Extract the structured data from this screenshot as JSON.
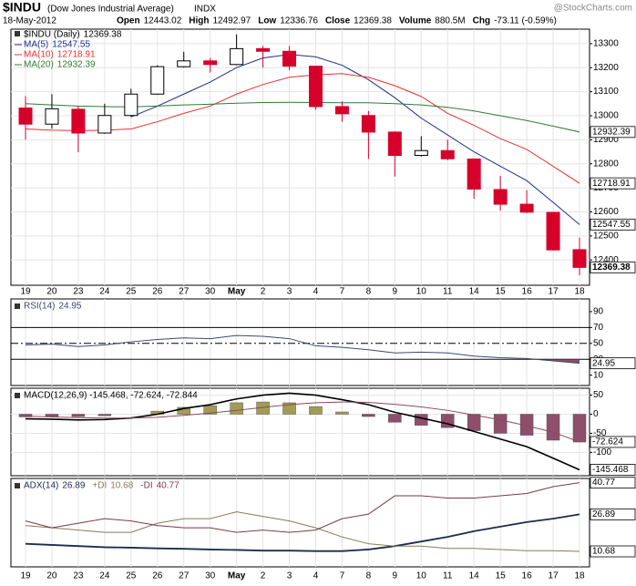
{
  "header": {
    "title": "$INDU",
    "subtitle": "(Dow Jones Industrial Average)",
    "exchange": "INDX",
    "watermark": "@StockCharts.com",
    "date": "18-May-2012",
    "stats": [
      {
        "label": "Open",
        "value": 12443.02
      },
      {
        "label": "High",
        "value": 12492.97
      },
      {
        "label": "Low",
        "value": 12336.76
      },
      {
        "label": "Close",
        "value": 12369.38
      },
      {
        "label": "Volume",
        "value": "880.5M"
      },
      {
        "label": "Chg",
        "value": "-73.11 (-0.59%)"
      }
    ]
  },
  "chart_data": [
    {
      "type": "candlestick",
      "title": "$INDU (Daily)",
      "categories": [
        "19",
        "20",
        "23",
        "24",
        "25",
        "26",
        "27",
        "30",
        "May",
        "2",
        "3",
        "4",
        "7",
        "8",
        "9",
        "10",
        "11",
        "14",
        "15",
        "16",
        "17",
        "18"
      ],
      "open": [
        13032,
        12965,
        13027,
        12928,
        13001,
        13090,
        13204,
        13228,
        13213,
        13279,
        13268,
        13206,
        13038,
        13001,
        12932,
        12835,
        12855,
        12820,
        12693,
        12632,
        12598,
        12443.02
      ],
      "high": [
        13082,
        13090,
        13040,
        13050,
        13112,
        13210,
        13266,
        13240,
        13338,
        13290,
        13290,
        13206,
        13060,
        13020,
        12935,
        12915,
        12900,
        12822,
        12750,
        12690,
        12600,
        12492.97
      ],
      "low": [
        12901,
        12946,
        12848,
        12925,
        12995,
        13087,
        13200,
        13180,
        13210,
        13200,
        13190,
        13025,
        12975,
        12820,
        12747,
        12830,
        12815,
        12655,
        12605,
        12595,
        12440,
        12336.76
      ],
      "close": [
        12965,
        13029,
        12928,
        13001,
        13090,
        13204,
        13228,
        13213,
        13279,
        13268,
        13206,
        13038,
        13008,
        12932,
        12835,
        12855,
        12821,
        12695,
        12632,
        12599,
        12442,
        12369.38
      ],
      "up_color": "#ffffff",
      "down_color": "#d6002a",
      "series": [
        {
          "name": "MA(5)",
          "color": "#1f2d8c",
          "values": [
            null,
            null,
            null,
            null,
            12995,
            13040,
            13090,
            13140,
            13200,
            13240,
            13255,
            13245,
            13210,
            13150,
            13075,
            12990,
            12920,
            12850,
            12790,
            12730,
            12640,
            12547.55
          ]
        },
        {
          "name": "MA(10)",
          "color": "#e8312f",
          "values": [
            12945,
            12940,
            12938,
            12940,
            12945,
            12975,
            13010,
            13040,
            13090,
            13130,
            13160,
            13170,
            13175,
            13160,
            13125,
            13080,
            13010,
            12960,
            12905,
            12860,
            12790,
            12718.91
          ]
        },
        {
          "name": "MA(20)",
          "color": "#2e7d32",
          "values": [
            13050,
            13045,
            13040,
            13038,
            13037,
            13040,
            13045,
            13048,
            13052,
            13055,
            13056,
            13055,
            13054,
            13054,
            13050,
            13045,
            13035,
            13020,
            13000,
            12980,
            12957,
            12932.39
          ]
        }
      ],
      "ylim": [
        12295,
        13360
      ],
      "yticks": [
        12400,
        12500,
        12600,
        12700,
        12800,
        12900,
        13000,
        13100,
        13200,
        13300
      ],
      "grid": true
    },
    {
      "type": "line",
      "series": [
        {
          "name": "RSI(14)",
          "color": "#3b4a6b",
          "values": [
            48,
            49,
            46,
            48,
            52,
            55,
            57,
            56,
            60,
            59,
            56,
            47,
            45,
            42,
            38,
            39,
            38,
            34,
            32,
            31,
            28,
            24.95
          ]
        }
      ],
      "bands": [
        30,
        70
      ],
      "midline": 50,
      "oversold_color": "#8e4e6c",
      "ylim": [
        -3,
        106
      ],
      "yticks": [
        10,
        30,
        50,
        70,
        90
      ],
      "grid": false
    },
    {
      "type": "macd",
      "legend": "MACD(12,26,9) -145.468, -72.624, -72.844",
      "series": [
        {
          "color": "#000000",
          "values": [
            -12,
            -13,
            -15,
            -14,
            -10,
            0,
            15,
            25,
            40,
            50,
            55,
            50,
            38,
            25,
            5,
            -10,
            -25,
            -45,
            -65,
            -85,
            -115,
            -145.468
          ]
        },
        {
          "color": "#8a4a5a",
          "values": [
            -5,
            -7,
            -9,
            -10,
            -10,
            -8,
            -3,
            3,
            10,
            18,
            25,
            30,
            32,
            31,
            26,
            19,
            10,
            -2,
            -15,
            -30,
            -47,
            -72.624
          ]
        },
        {
          "colors": {
            "positive": "#a39b55",
            "negative": "#8e4e6c"
          },
          "values": [
            -7,
            -6,
            -6,
            -4,
            0,
            8,
            18,
            22,
            30,
            32,
            30,
            20,
            6,
            -6,
            -21,
            -29,
            -35,
            -43,
            -50,
            -55,
            -68,
            -72.844
          ]
        }
      ],
      "ylim": [
        -161,
        68
      ],
      "yticks": [
        -100,
        -50,
        0,
        50
      ],
      "grid": true
    },
    {
      "type": "line",
      "series": [
        {
          "name": "ADX(14)",
          "color": "#1c2c4c",
          "values": [
            14,
            13.5,
            13,
            12.5,
            12.3,
            12,
            11.8,
            11.5,
            11.3,
            11,
            11,
            10.8,
            10.8,
            11.5,
            13,
            15,
            17,
            19.5,
            21.5,
            23.5,
            25,
            26.89
          ]
        },
        {
          "name": "+DI",
          "color": "#8a7a55",
          "values": [
            22,
            21,
            20,
            19,
            19,
            23,
            25,
            25,
            28,
            26,
            24,
            21,
            17,
            14,
            13,
            13,
            12,
            12,
            11.5,
            11,
            11,
            10.68
          ]
        },
        {
          "name": "-DI",
          "color": "#7a3a46",
          "values": [
            24,
            21,
            23,
            25,
            24,
            22,
            21,
            21,
            19,
            20,
            19,
            20,
            25,
            27,
            35,
            35,
            34,
            34,
            35,
            36,
            39,
            40.77
          ]
        }
      ],
      "ylim": [
        3.9,
        42.6
      ],
      "grid": false
    }
  ]
}
